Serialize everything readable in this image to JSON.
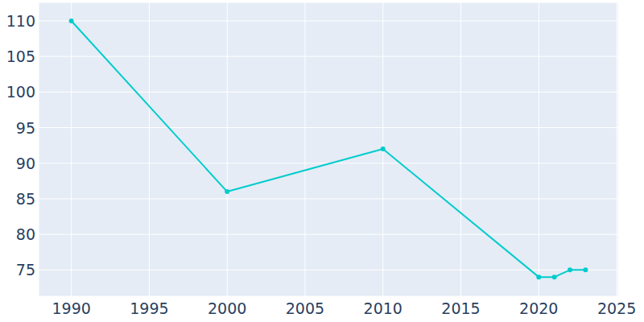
{
  "chart_data": {
    "type": "line",
    "x": [
      1990,
      2000,
      2010,
      2020,
      2021,
      2022,
      2023
    ],
    "values": [
      110,
      86,
      92,
      74,
      74,
      75,
      75
    ],
    "color": "#00cccc",
    "marker": "circle",
    "xlim": [
      1987.9,
      2025.1
    ],
    "xticks": [
      1990,
      1995,
      2000,
      2005,
      2010,
      2015,
      2020,
      2025
    ],
    "ylim": [
      71.3,
      112.6
    ],
    "yticks": [
      75,
      80,
      85,
      90,
      95,
      100,
      105,
      110
    ],
    "grid": true
  }
}
